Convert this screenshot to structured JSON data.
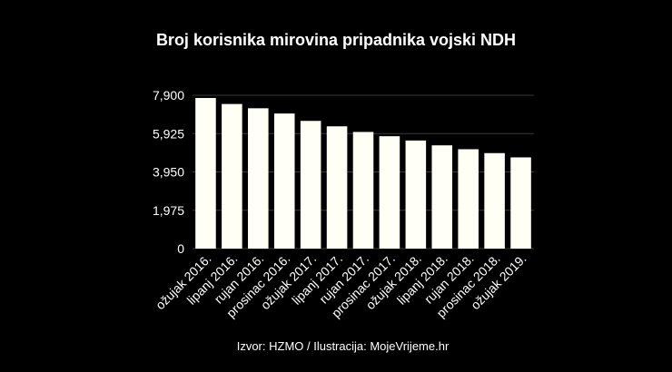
{
  "chart_data": {
    "type": "bar",
    "title": "Broj korisnika mirovina pripadnika vojski NDH",
    "source": "Izvor: HZMO / Ilustracija: MojeVrijeme.hr",
    "xlabel": "",
    "ylabel": "",
    "categories": [
      "ožujak 2016.",
      "lipanj 2016.",
      "rujan 2016.",
      "prosinac 2016.",
      "ožujak 2017.",
      "lipanj 2017.",
      "rujan 2017.",
      "prosinac 2017.",
      "ožujak 2018.",
      "lipanj 2018.",
      "rujan 2018.",
      "prosinac 2018.",
      "ožujak 2019."
    ],
    "values": [
      7760,
      7450,
      7230,
      6960,
      6580,
      6300,
      6010,
      5790,
      5570,
      5320,
      5120,
      4920,
      4700
    ],
    "yticks": [
      "0",
      "1,975",
      "3,950",
      "5,925",
      "7,900"
    ],
    "ylim": [
      0,
      7900
    ],
    "grid": true,
    "bar_color": "#fffff5",
    "background": "#000000"
  }
}
